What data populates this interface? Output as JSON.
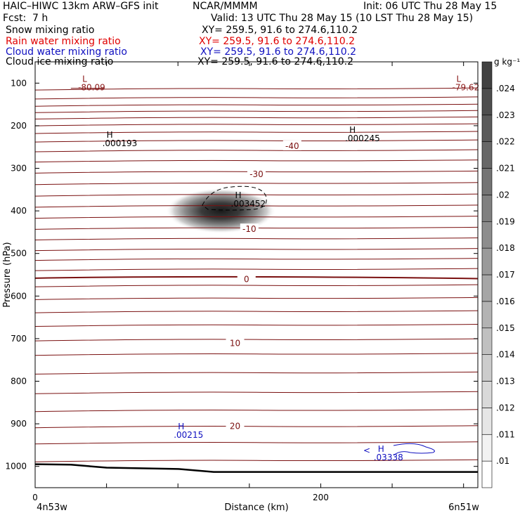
{
  "header": {
    "title_left": "HAIC–HIWC 13km ARW–GFS init",
    "org": "NCAR/MMMM",
    "init": "Init: 06 UTC Thu 28 May 15",
    "fcst_label": "Fcst:",
    "fcst_value": "7 h",
    "valid": "Valid: 13 UTC Thu 28 May 15 (10 LST Thu 28 May 15)"
  },
  "fields": [
    {
      "name": "Snow mixing ratio",
      "xy": "XY= 259.5, 91.6 to 274.6,110.2",
      "color": "#000000"
    },
    {
      "name": "Rain water mixing ratio",
      "xy": "XY= 259.5, 91.6 to 274.6,110.2",
      "color": "#e00000"
    },
    {
      "name": "Cloud water mixing ratio",
      "xy": "XY= 259.5, 91.6 to 274.6,110.2",
      "color": "#1010c0"
    },
    {
      "name": "Cloud ice mixing ratio",
      "xy": "XY= 259.5, 91.6 to 274.6,110.2",
      "color": "#000000"
    }
  ],
  "chart_data": {
    "type": "cross-section",
    "xlabel": "Distance (km)",
    "ylabel": "Pressure (hPa)",
    "xlim": [
      0,
      310
    ],
    "ylim": [
      50,
      1050
    ],
    "x_ticks": [
      0,
      200
    ],
    "y_ticks": [
      100,
      200,
      300,
      400,
      500,
      600,
      700,
      800,
      900,
      1000
    ],
    "x_end_labels": [
      "4n53w",
      "6n51w"
    ],
    "colorbar": {
      "unit": "g kg⁻¹",
      "levels": [
        0.01,
        0.011,
        0.012,
        0.013,
        0.014,
        0.015,
        0.016,
        0.017,
        0.018,
        0.019,
        0.02,
        0.021,
        0.022,
        0.023,
        0.024
      ],
      "level_labels": [
        ".01",
        ".011",
        ".012",
        ".013",
        ".014",
        ".015",
        ".016",
        ".017",
        ".018",
        ".019",
        ".02",
        ".021",
        ".022",
        ".023",
        ".024"
      ]
    },
    "temperature_contour_levels": [
      -40,
      -30,
      -10,
      0,
      10,
      20
    ],
    "temperature_contour_labels": [
      {
        "value": "-40",
        "x": 180,
        "p": 248
      },
      {
        "value": "-30",
        "x": 155,
        "p": 314
      },
      {
        "value": "-10",
        "x": 150,
        "p": 443
      },
      {
        "value": "0",
        "x": 148,
        "p": 561
      },
      {
        "value": "10",
        "x": 140,
        "p": 711
      },
      {
        "value": "20",
        "x": 140,
        "p": 906
      }
    ],
    "annotations": [
      {
        "mark": "L",
        "value": "-80.09",
        "x": 33,
        "p": 97,
        "color": "#8b1a1a"
      },
      {
        "mark": "L",
        "value": "-79.62",
        "x": 295,
        "p": 97,
        "color": "#8b1a1a"
      },
      {
        "mark": "H",
        "value": ".000193",
        "x": 50,
        "p": 228,
        "color": "#000000"
      },
      {
        "mark": "H",
        "value": ".000245",
        "x": 220,
        "p": 217,
        "color": "#000000"
      },
      {
        "mark": "H",
        "value": ".003452",
        "x": 140,
        "p": 370,
        "color": "#000000"
      },
      {
        "mark": "H",
        "value": ".00215",
        "x": 100,
        "p": 913,
        "color": "#1010c0"
      },
      {
        "mark": "H",
        "value": ".03338",
        "x": 240,
        "p": 966,
        "color": "#1010c0"
      }
    ],
    "snow_max": {
      "x": 130,
      "p": 400,
      "value": 0.024
    },
    "terrain_pressure": [
      [
        0,
        995
      ],
      [
        25,
        996
      ],
      [
        50,
        1003
      ],
      [
        100,
        1006
      ],
      [
        125,
        1013
      ],
      [
        310,
        1013
      ]
    ]
  }
}
